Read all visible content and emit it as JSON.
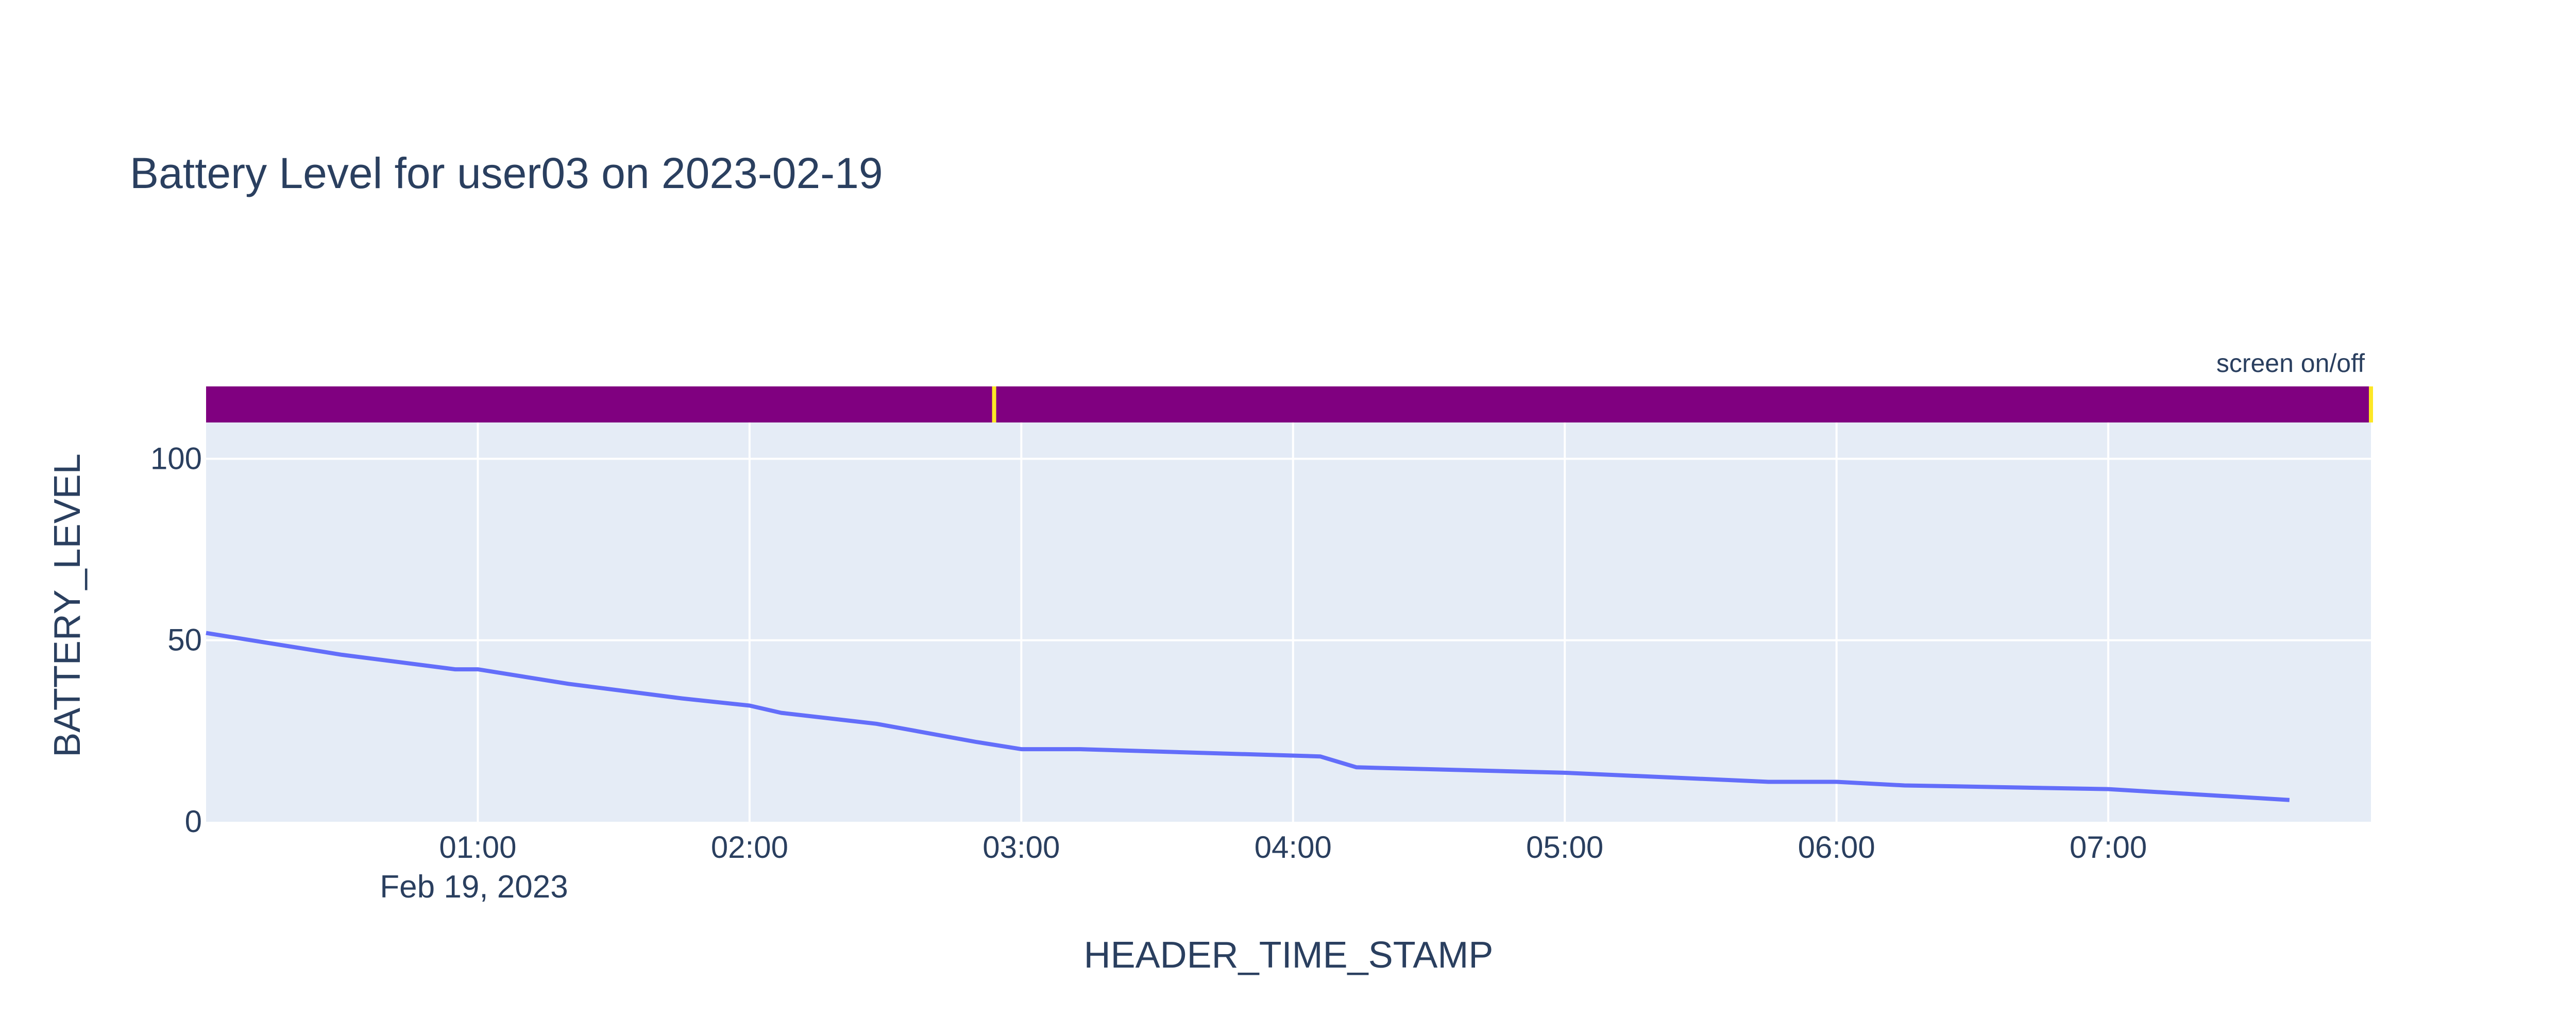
{
  "chart_data": {
    "type": "line",
    "title": "Battery Level for user03 on 2023-02-19",
    "xlabel": "HEADER_TIME_STAMP",
    "ylabel": "BATTERY_LEVEL",
    "xlim": [
      "2023-02-19 00:00",
      "2023-02-19 07:58"
    ],
    "ylim": [
      0,
      110
    ],
    "grid": true,
    "x_ticks": [
      {
        "time": "2023-02-19 01:00",
        "label": "01:00"
      },
      {
        "time": "2023-02-19 02:00",
        "label": "02:00"
      },
      {
        "time": "2023-02-19 03:00",
        "label": "03:00"
      },
      {
        "time": "2023-02-19 04:00",
        "label": "04:00"
      },
      {
        "time": "2023-02-19 05:00",
        "label": "05:00"
      },
      {
        "time": "2023-02-19 06:00",
        "label": "06:00"
      },
      {
        "time": "2023-02-19 07:00",
        "label": "07:00"
      }
    ],
    "x_date_label": "Feb 19, 2023",
    "y_ticks": [
      0,
      50,
      100
    ],
    "series": [
      {
        "color": "#636efa",
        "x": [
          "2023-02-19 00:00",
          "2023-02-19 00:05",
          "2023-02-19 00:30",
          "2023-02-19 00:55",
          "2023-02-19 01:00",
          "2023-02-19 01:20",
          "2023-02-19 01:45",
          "2023-02-19 02:00",
          "2023-02-19 02:07",
          "2023-02-19 02:28",
          "2023-02-19 02:50",
          "2023-02-19 03:00",
          "2023-02-19 03:13",
          "2023-02-19 04:06",
          "2023-02-19 04:14",
          "2023-02-19 05:00",
          "2023-02-19 05:45",
          "2023-02-19 06:00",
          "2023-02-19 06:15",
          "2023-02-19 07:00",
          "2023-02-19 07:40"
        ],
        "y": [
          52,
          51,
          46,
          42,
          42,
          38,
          34,
          32,
          30,
          27,
          22,
          20,
          20,
          18,
          15,
          13.5,
          11,
          11,
          10,
          9,
          6
        ]
      }
    ],
    "event_bar": {
      "label": "screen on/off",
      "base_color": "#800080",
      "marker_color": "#fde725",
      "events": [
        "2023-02-19 02:54",
        "2023-02-19 07:58"
      ]
    }
  }
}
